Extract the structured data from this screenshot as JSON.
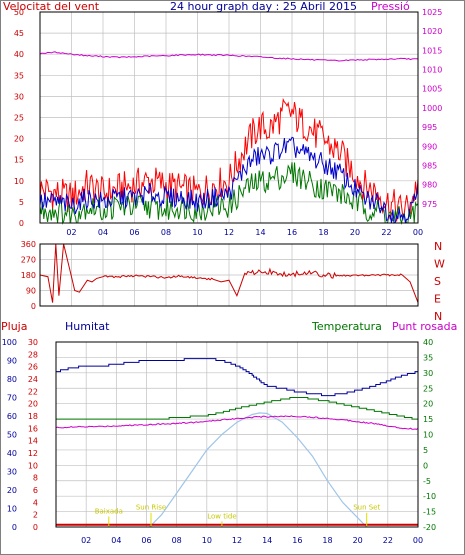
{
  "header": {
    "wind_speed_label": "Velocitat del vent",
    "title": "24 hour graph day : 25 Abril 2015",
    "pressure_label": "Pressió"
  },
  "legend": {
    "rain": "Pluja",
    "humidity": "Humitat",
    "temperature": "Temperatura",
    "dewpoint": "Punt rosada"
  },
  "colors": {
    "wind_gust": "#ff0000",
    "wind_avg_line": "#0000cc",
    "wind_avg": "#007700",
    "pressure": "#cc00cc",
    "direction": "#cc0000",
    "humidity": "#00009a",
    "temperature": "#007700",
    "dewpoint": "#cc00cc",
    "solar": "#9fc5e8",
    "rain": "#cc0000",
    "grid": "#c0c0c0",
    "annotation": "#dddd00"
  },
  "chart_data": [
    {
      "type": "area",
      "title": "24 hour graph day : 25 Abril 2015",
      "x_ticks": [
        "02",
        "04",
        "06",
        "08",
        "10",
        "12",
        "14",
        "16",
        "18",
        "20",
        "22",
        "00"
      ],
      "xlim_hours": [
        0,
        24
      ],
      "left_axis": {
        "label": "Velocitat del vent",
        "ylim": [
          0,
          50
        ],
        "ticks": [
          "0",
          "5",
          "10",
          "15",
          "20",
          "25",
          "30",
          "35",
          "40",
          "45",
          "50"
        ]
      },
      "right_axis": {
        "label": "Pressió",
        "ylim": [
          970,
          1025
        ],
        "ticks": [
          "975",
          "980",
          "985",
          "990",
          "995",
          "1000",
          "1005",
          "1010",
          "1015",
          "1020",
          "1025"
        ]
      },
      "series": [
        {
          "name": "gust",
          "hours": [
            0,
            1,
            2,
            3,
            4,
            5,
            6,
            7,
            8,
            9,
            10,
            11,
            12,
            12.5,
            13,
            13.5,
            14,
            14.5,
            15,
            15.5,
            16,
            16.5,
            17,
            17.5,
            18,
            18.5,
            19,
            19.5,
            20,
            20.5,
            21,
            21.5,
            22,
            22.5,
            23,
            23.5,
            24
          ],
          "values": [
            8,
            7,
            6,
            9,
            7,
            8,
            9,
            10,
            9,
            8,
            7,
            9,
            10,
            14,
            18,
            21,
            23,
            22,
            24,
            26,
            26,
            24,
            23,
            21,
            20,
            18,
            17,
            14,
            12,
            9,
            8,
            7,
            5,
            4,
            3,
            4,
            10
          ]
        },
        {
          "name": "average",
          "hours": [
            0,
            1,
            2,
            3,
            4,
            5,
            6,
            7,
            8,
            9,
            10,
            11,
            12,
            12.5,
            13,
            13.5,
            14,
            14.5,
            15,
            15.5,
            16,
            16.5,
            17,
            17.5,
            18,
            18.5,
            19,
            19.5,
            20,
            20.5,
            21,
            21.5,
            22,
            22.5,
            23,
            23.5,
            24
          ],
          "values": [
            5,
            5,
            4,
            6,
            5,
            6,
            6,
            7,
            6,
            6,
            5,
            6,
            7,
            10,
            13,
            15,
            16,
            16,
            17,
            18,
            18,
            17,
            16,
            15,
            14,
            13,
            12,
            10,
            8,
            6,
            5,
            5,
            3,
            2,
            2,
            3,
            7
          ]
        },
        {
          "name": "wind",
          "hours": [
            0,
            1,
            2,
            3,
            4,
            5,
            6,
            7,
            8,
            9,
            10,
            11,
            12,
            12.5,
            13,
            13.5,
            14,
            14.5,
            15,
            15.5,
            16,
            16.5,
            17,
            17.5,
            18,
            18.5,
            19,
            19.5,
            20,
            20.5,
            21,
            21.5,
            22,
            22.5,
            23,
            23.5,
            24
          ],
          "values": [
            3,
            3,
            2,
            4,
            3,
            4,
            4,
            4,
            3,
            4,
            3,
            4,
            4,
            6,
            8,
            9,
            10,
            10,
            11,
            11,
            12,
            11,
            10,
            9,
            8,
            8,
            7,
            6,
            5,
            4,
            3,
            3,
            2,
            1,
            1,
            1,
            4
          ]
        },
        {
          "name": "pressure",
          "hours": [
            0,
            1,
            2,
            3,
            4,
            5,
            6,
            7,
            8,
            9,
            10,
            11,
            12,
            13,
            14,
            15,
            16,
            17,
            18,
            19,
            20,
            21,
            22,
            23,
            24
          ],
          "values": [
            1014.2,
            1014.5,
            1014.0,
            1013.6,
            1013.4,
            1013.2,
            1013.3,
            1013.5,
            1013.6,
            1013.8,
            1013.9,
            1013.8,
            1013.7,
            1013.5,
            1013.3,
            1013.0,
            1012.8,
            1012.6,
            1012.4,
            1012.3,
            1012.5,
            1012.6,
            1012.7,
            1012.8,
            1012.7
          ]
        }
      ]
    },
    {
      "type": "line",
      "y_ticks": [
        "360",
        "270",
        "180",
        "90",
        "0"
      ],
      "ylim": [
        0,
        360
      ],
      "direction_labels": [
        "N",
        "W",
        "S",
        "E",
        "N"
      ],
      "series": [
        {
          "name": "direction",
          "hours": [
            0,
            0.5,
            0.8,
            1,
            1.2,
            1.5,
            2,
            2.2,
            2.5,
            3,
            3.3,
            3.6,
            4,
            5,
            6,
            7,
            8,
            9,
            10,
            11,
            11.5,
            12,
            12.5,
            13,
            14,
            15,
            16,
            17,
            18,
            19,
            20,
            21,
            22,
            23,
            23.5,
            24
          ],
          "values": [
            180,
            170,
            20,
            360,
            60,
            360,
            170,
            90,
            80,
            150,
            140,
            160,
            170,
            170,
            175,
            170,
            165,
            175,
            160,
            155,
            140,
            150,
            60,
            190,
            200,
            195,
            185,
            190,
            180,
            175,
            180,
            180,
            180,
            180,
            140,
            20
          ]
        }
      ]
    },
    {
      "type": "line",
      "x_ticks": [
        "02",
        "04",
        "06",
        "08",
        "10",
        "12",
        "14",
        "16",
        "18",
        "20",
        "22",
        "00"
      ],
      "axes": {
        "humidity": {
          "ylim": [
            0,
            100
          ],
          "ticks": [
            "0",
            "10",
            "20",
            "30",
            "40",
            "50",
            "60",
            "70",
            "80",
            "90",
            "100"
          ]
        },
        "rain": {
          "ylim": [
            0,
            30
          ],
          "ticks": [
            "0",
            "2",
            "4",
            "6",
            "8",
            "10",
            "12",
            "14",
            "16",
            "18",
            "20",
            "22",
            "24",
            "26",
            "28",
            "30"
          ]
        },
        "temperature": {
          "ylim": [
            -20,
            40
          ],
          "ticks": [
            "-20",
            "-15",
            "-10",
            "-5",
            "0",
            "5",
            "10",
            "15",
            "20",
            "25",
            "30",
            "35",
            "40"
          ]
        }
      },
      "annotations": [
        {
          "text": "Baixada",
          "hour": 3.5,
          "label_y": 22
        },
        {
          "text": "Sun Rise",
          "hour": 6.3,
          "label_y": 28
        },
        {
          "text": "Low tide",
          "hour": 11.0,
          "label_y": 14
        },
        {
          "text": "Sun Set",
          "hour": 20.6,
          "label_y": 28
        }
      ],
      "series": [
        {
          "name": "Humitat",
          "hours": [
            0,
            1,
            2,
            3,
            4,
            5,
            6,
            7,
            8,
            9,
            10,
            11,
            12,
            13,
            14,
            15,
            16,
            17,
            18,
            19,
            20,
            21,
            22,
            23,
            24
          ],
          "values": [
            84,
            86,
            87,
            87,
            88,
            89,
            90,
            90,
            90,
            91,
            91,
            90,
            87,
            82,
            76,
            75,
            73,
            72,
            71,
            72,
            74,
            76,
            79,
            82,
            84
          ]
        },
        {
          "name": "Temperatura",
          "hours": [
            0,
            1,
            2,
            3,
            4,
            5,
            6,
            7,
            8,
            9,
            10,
            11,
            12,
            13,
            14,
            15,
            16,
            17,
            18,
            19,
            20,
            21,
            22,
            23,
            24
          ],
          "values": [
            14.8,
            14.8,
            14.8,
            14.8,
            14.8,
            15,
            15,
            15.2,
            15.3,
            15.8,
            16.2,
            17.2,
            18.5,
            19.5,
            20.5,
            21.4,
            22.2,
            21.5,
            20.8,
            19.8,
            18.8,
            17.8,
            16.8,
            15.8,
            14.8
          ]
        },
        {
          "name": "Punt rosada",
          "hours": [
            0,
            1,
            2,
            3,
            4,
            5,
            6,
            7,
            8,
            9,
            10,
            11,
            12,
            13,
            14,
            15,
            16,
            17,
            18,
            19,
            20,
            21,
            22,
            23,
            24
          ],
          "values": [
            12.2,
            12.4,
            12.5,
            12.6,
            12.8,
            13.0,
            13.2,
            13.4,
            13.6,
            13.9,
            14.2,
            14.8,
            15.2,
            15.6,
            15.8,
            15.9,
            15.9,
            15.6,
            15.2,
            14.8,
            14.2,
            13.6,
            12.8,
            12.0,
            11.8
          ]
        },
        {
          "name": "solar",
          "hours": [
            6.2,
            7,
            8,
            9,
            10,
            11,
            12,
            13,
            13.5,
            14,
            15,
            16,
            17,
            18,
            19,
            20,
            20.6
          ],
          "values": [
            -20,
            -16,
            -9,
            -2,
            5,
            10,
            14,
            16.5,
            17,
            16.8,
            14,
            9,
            3,
            -5,
            -12,
            -17,
            -20
          ]
        },
        {
          "name": "Pluja",
          "hours": [
            0,
            24
          ],
          "values": [
            0.2,
            0.2
          ]
        }
      ]
    }
  ]
}
